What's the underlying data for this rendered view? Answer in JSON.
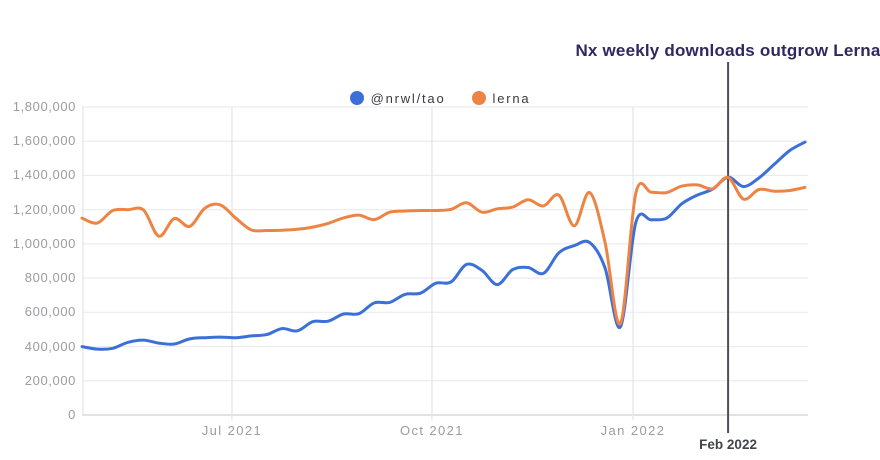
{
  "title": {
    "text": "Nx weekly downloads outgrow Lerna",
    "color": "#2e2a60"
  },
  "legend": {
    "items": [
      {
        "label": "@nrwl/tao",
        "color": "#3b70d8"
      },
      {
        "label": "lerna",
        "color": "#ed8444"
      }
    ]
  },
  "annotation": {
    "label": "Feb 2022",
    "t": 42,
    "line_color": "#4e4e55",
    "text_color": "#44444c"
  },
  "colors": {
    "background": "#ffffff",
    "grid_horizontal": "#ececf0",
    "grid_vertical": "#e4e4e9",
    "axis_line": "#d9d9de",
    "tick_text": "#9c9ca1"
  },
  "chart_data": {
    "type": "line",
    "title": "Nx weekly downloads outgrow Lerna",
    "xlabel": "",
    "ylabel": "",
    "ylim": [
      0,
      1800000
    ],
    "grid": true,
    "legend_position": "top-center",
    "x_unit": "week",
    "x": [
      "2021-04-25",
      "2021-05-02",
      "2021-05-09",
      "2021-05-16",
      "2021-05-23",
      "2021-05-30",
      "2021-06-06",
      "2021-06-13",
      "2021-06-20",
      "2021-06-27",
      "2021-07-04",
      "2021-07-11",
      "2021-07-18",
      "2021-07-25",
      "2021-08-01",
      "2021-08-08",
      "2021-08-15",
      "2021-08-22",
      "2021-08-29",
      "2021-09-05",
      "2021-09-12",
      "2021-09-19",
      "2021-09-26",
      "2021-10-03",
      "2021-10-10",
      "2021-10-17",
      "2021-10-24",
      "2021-10-31",
      "2021-11-07",
      "2021-11-14",
      "2021-11-21",
      "2021-11-28",
      "2021-12-05",
      "2021-12-12",
      "2021-12-19",
      "2021-12-26",
      "2022-01-02",
      "2022-01-09",
      "2022-01-16",
      "2022-01-23",
      "2022-01-30",
      "2022-02-06",
      "2022-02-13",
      "2022-02-20",
      "2022-02-27",
      "2022-03-06",
      "2022-03-13",
      "2022-03-20"
    ],
    "series": [
      {
        "name": "@nrwl/tao",
        "color": "#3b70d8",
        "values": [
          400000,
          385000,
          390000,
          425000,
          438000,
          420000,
          415000,
          445000,
          452000,
          455000,
          452000,
          462000,
          470000,
          505000,
          492000,
          545000,
          548000,
          590000,
          592000,
          655000,
          658000,
          705000,
          712000,
          770000,
          778000,
          880000,
          845000,
          762000,
          850000,
          862000,
          828000,
          948000,
          990000,
          1008000,
          860000,
          515000,
          1125000,
          1140000,
          1150000,
          1235000,
          1285000,
          1320000,
          1390000,
          1335000,
          1385000,
          1465000,
          1545000,
          1595000
        ]
      },
      {
        "name": "lerna",
        "color": "#ed8444",
        "values": [
          1150000,
          1122000,
          1195000,
          1200000,
          1198000,
          1045000,
          1148000,
          1102000,
          1210000,
          1228000,
          1150000,
          1082000,
          1078000,
          1080000,
          1085000,
          1098000,
          1120000,
          1152000,
          1168000,
          1142000,
          1185000,
          1192000,
          1195000,
          1195000,
          1202000,
          1240000,
          1185000,
          1205000,
          1215000,
          1258000,
          1222000,
          1285000,
          1105000,
          1300000,
          1010000,
          535000,
          1295000,
          1302000,
          1300000,
          1338000,
          1345000,
          1322000,
          1388000,
          1262000,
          1318000,
          1308000,
          1312000,
          1330000
        ]
      }
    ],
    "y_ticks": [
      {
        "value": 0,
        "label": "0"
      },
      {
        "value": 200000,
        "label": "200,000"
      },
      {
        "value": 400000,
        "label": "400,000"
      },
      {
        "value": 600000,
        "label": "600,000"
      },
      {
        "value": 800000,
        "label": "800,000"
      },
      {
        "value": 1000000,
        "label": "1,000,000"
      },
      {
        "value": 1200000,
        "label": "1,200,000"
      },
      {
        "value": 1400000,
        "label": "1,400,000"
      },
      {
        "value": 1600000,
        "label": "1,600,000"
      },
      {
        "value": 1800000,
        "label": "1,800,000"
      }
    ],
    "x_ticks": [
      {
        "label": "Jul 2021",
        "t": 9.75
      },
      {
        "label": "Oct 2021",
        "t": 22.75
      },
      {
        "label": "Jan 2022",
        "t": 35.82
      }
    ],
    "annotation": {
      "label": "Feb 2022",
      "t": 42
    }
  }
}
